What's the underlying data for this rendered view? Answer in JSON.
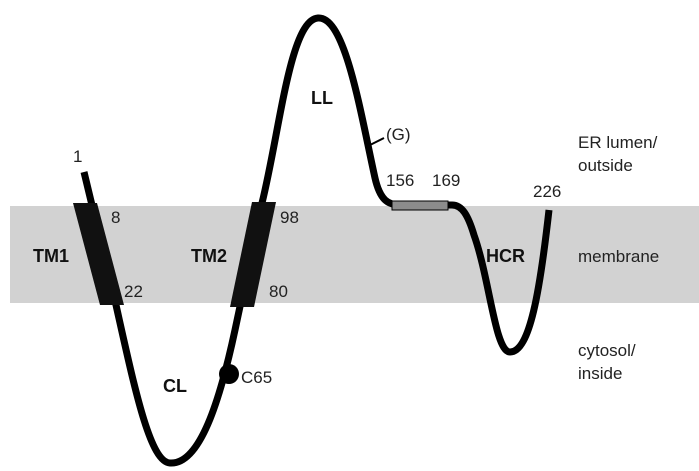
{
  "colors": {
    "background": "#ffffff",
    "membrane": "#d2d2d2",
    "chain": "#000000",
    "hcr_segment": "#8c8c8c",
    "text": "#222222"
  },
  "segments": {
    "tm1": "TM1",
    "tm2": "TM2",
    "ll": "LL",
    "cl": "CL",
    "hcr": "HCR"
  },
  "residues": {
    "n_term": "1",
    "r8": "8",
    "r22": "22",
    "r98": "98",
    "r80": "80",
    "r156": "156",
    "r169": "169",
    "r226": "226",
    "c65": "C65",
    "glyco": "(G)"
  },
  "compartments": {
    "er_lumen_line1": "ER lumen/",
    "er_lumen_line2": "outside",
    "membrane": "membrane",
    "cytosol_line1": "cytosol/",
    "cytosol_line2": "inside"
  }
}
